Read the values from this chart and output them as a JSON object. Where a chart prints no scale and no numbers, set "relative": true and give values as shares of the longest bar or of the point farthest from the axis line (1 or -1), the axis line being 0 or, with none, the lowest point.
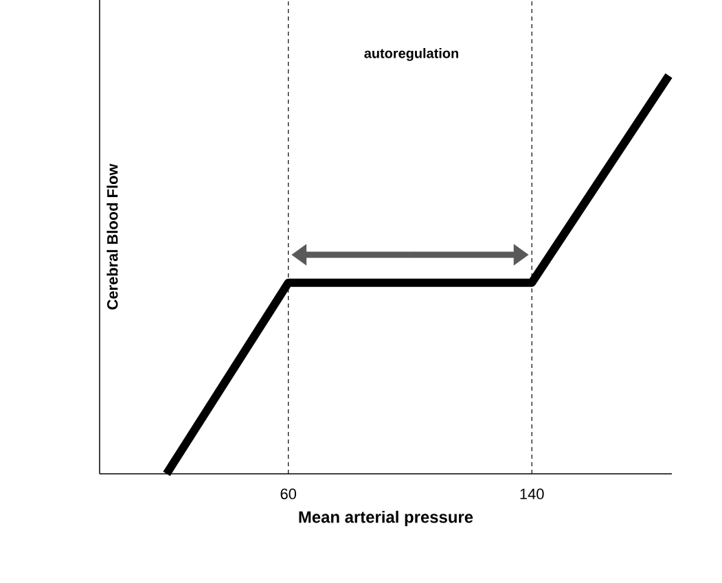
{
  "chart_data": {
    "type": "line",
    "xlabel": "Mean arterial pressure",
    "ylabel": "Cerebral Blood Flow",
    "annotations": [
      "autoregulation"
    ],
    "relative": true,
    "x": [
      20,
      60,
      140,
      185
    ],
    "series": [
      {
        "color": "#000000",
        "values": [
          0,
          0.48,
          0.48,
          1
        ]
      }
    ],
    "xlim": [
      -2,
      186
    ],
    "xticks": [
      60,
      140
    ],
    "ref_lines": [
      {
        "axis": "x",
        "value": 60,
        "color": "#000000",
        "line_style": "dashed"
      },
      {
        "axis": "x",
        "value": 140,
        "color": "#000000",
        "line_style": "dashed"
      }
    ]
  }
}
